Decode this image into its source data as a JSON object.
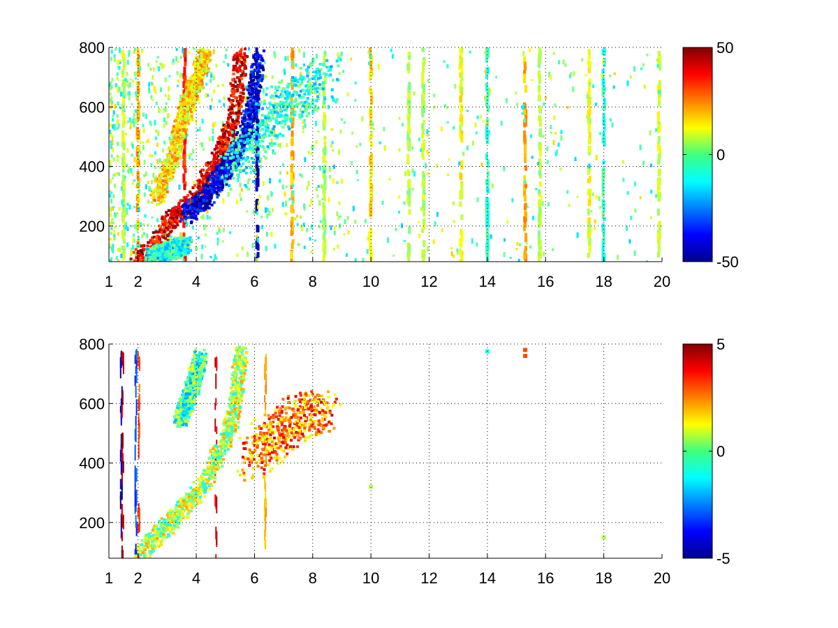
{
  "chart_data": [
    {
      "type": "heatmap",
      "panel": "top",
      "xlim": [
        1,
        20
      ],
      "ylim": [
        80,
        800
      ],
      "x_ticks": [
        1,
        2,
        4,
        6,
        8,
        10,
        12,
        14,
        16,
        18,
        20
      ],
      "x_tick_labels": [
        "1",
        "2",
        "4",
        "6",
        "8",
        "10",
        "12",
        "14",
        "16",
        "18",
        "20"
      ],
      "y_ticks": [
        200,
        400,
        600,
        800
      ],
      "y_tick_labels": [
        "200",
        "400",
        "600",
        "800"
      ],
      "grid": true,
      "colormap": "jet",
      "colorbar": {
        "range": [
          -50,
          50
        ],
        "ticks": [
          50,
          0,
          -50
        ],
        "tick_labels": [
          "50",
          "0",
          "-50"
        ]
      },
      "features": [
        {
          "kind": "positive-ridge",
          "value": 40,
          "points": [
            [
              1.9,
              90
            ],
            [
              2.6,
              140
            ],
            [
              3.0,
              220
            ],
            [
              3.5,
              260
            ],
            [
              4.0,
              300
            ],
            [
              4.4,
              380
            ],
            [
              4.8,
              450
            ],
            [
              5.2,
              550
            ],
            [
              5.4,
              700
            ],
            [
              5.5,
              800
            ]
          ]
        },
        {
          "kind": "negative-ridge",
          "value": -40,
          "points": [
            [
              3.6,
              240
            ],
            [
              4.2,
              290
            ],
            [
              4.7,
              360
            ],
            [
              5.2,
              430
            ],
            [
              5.6,
              500
            ],
            [
              5.9,
              620
            ],
            [
              6.1,
              780
            ]
          ]
        },
        {
          "kind": "secondary-positive-band",
          "value": 15,
          "points": [
            [
              2.6,
              300
            ],
            [
              3.2,
              450
            ],
            [
              3.6,
              600
            ],
            [
              4.0,
              700
            ],
            [
              4.3,
              800
            ]
          ]
        },
        {
          "kind": "scatter-cloud",
          "value": -10,
          "points": [
            [
              5.2,
              380
            ],
            [
              6.0,
              500
            ],
            [
              6.8,
              600
            ],
            [
              7.6,
              650
            ],
            [
              8.4,
              700
            ]
          ]
        },
        {
          "kind": "low-band",
          "value": -10,
          "points": [
            [
              2.4,
              100
            ],
            [
              3.0,
              120
            ],
            [
              3.6,
              140
            ]
          ]
        }
      ],
      "vertical_streaks": [
        {
          "x": 1.5,
          "value": 8
        },
        {
          "x": 2.0,
          "value": 20
        },
        {
          "x": 3.6,
          "value": 35
        },
        {
          "x": 6.1,
          "value": -45
        },
        {
          "x": 7.3,
          "value": 20
        },
        {
          "x": 8.4,
          "value": 5
        },
        {
          "x": 10.0,
          "value": 15
        },
        {
          "x": 11.3,
          "value": 5
        },
        {
          "x": 11.8,
          "value": 5
        },
        {
          "x": 13.1,
          "value": 12
        },
        {
          "x": 14.0,
          "value": -8
        },
        {
          "x": 15.3,
          "value": 20
        },
        {
          "x": 15.8,
          "value": 5
        },
        {
          "x": 17.5,
          "value": 10
        },
        {
          "x": 18.0,
          "value": -8
        },
        {
          "x": 19.9,
          "value": 8
        }
      ]
    },
    {
      "type": "heatmap",
      "panel": "bottom",
      "xlim": [
        1,
        20
      ],
      "ylim": [
        80,
        800
      ],
      "x_ticks": [
        1,
        2,
        4,
        6,
        8,
        10,
        12,
        14,
        16,
        18,
        20
      ],
      "x_tick_labels": [
        "1",
        "2",
        "4",
        "6",
        "8",
        "10",
        "12",
        "14",
        "16",
        "18",
        "20"
      ],
      "y_ticks": [
        200,
        400,
        600,
        800
      ],
      "y_tick_labels": [
        "200",
        "400",
        "600",
        "800"
      ],
      "grid": true,
      "colormap": "jet",
      "colorbar": {
        "range": [
          -5,
          5
        ],
        "ticks": [
          5,
          0,
          -5
        ],
        "tick_labels": [
          "5",
          "0",
          "-5"
        ]
      },
      "features": [
        {
          "kind": "main-band",
          "value": 0.5,
          "points": [
            [
              2.0,
              90
            ],
            [
              2.8,
              180
            ],
            [
              3.5,
              250
            ],
            [
              4.2,
              330
            ],
            [
              4.8,
              450
            ],
            [
              5.2,
              550
            ],
            [
              5.4,
              700
            ],
            [
              5.5,
              780
            ]
          ]
        },
        {
          "kind": "right-cloud",
          "value": 2.5,
          "points": [
            [
              5.8,
              400
            ],
            [
              6.4,
              480
            ],
            [
              7.0,
              520
            ],
            [
              7.6,
              560
            ],
            [
              8.4,
              580
            ]
          ]
        },
        {
          "kind": "left-arm",
          "value": -0.5,
          "points": [
            [
              3.4,
              550
            ],
            [
              3.8,
              650
            ],
            [
              4.1,
              760
            ]
          ]
        }
      ],
      "vertical_streaks": [
        {
          "x": 1.45,
          "value": -4.5
        },
        {
          "x": 1.5,
          "value": 4.5
        },
        {
          "x": 1.95,
          "value": -3
        },
        {
          "x": 2.05,
          "value": 3
        },
        {
          "x": 4.7,
          "value": 4
        },
        {
          "x": 6.4,
          "value": 2
        }
      ],
      "spots": [
        {
          "x": 10.0,
          "y": 320,
          "value": 0.5
        },
        {
          "x": 14.0,
          "y": 775,
          "value": -1
        },
        {
          "x": 15.3,
          "y": 780,
          "value": 3
        },
        {
          "x": 15.3,
          "y": 760,
          "value": 3
        },
        {
          "x": 18.0,
          "y": 150,
          "value": 0.5
        }
      ]
    }
  ]
}
